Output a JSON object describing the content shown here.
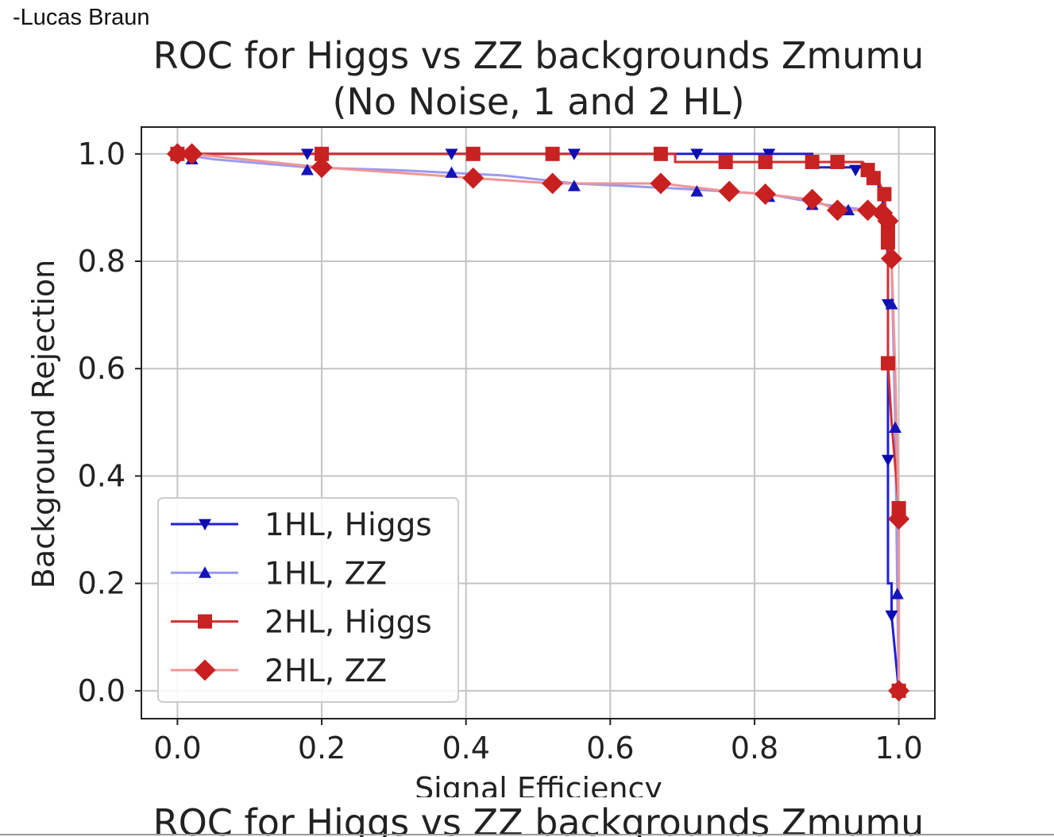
{
  "author": "-Lucas Braun",
  "chart_data": {
    "type": "line",
    "title": [
      "ROC for Higgs vs ZZ backgrounds Zmumu",
      "(No Noise, 1 and 2 HL)"
    ],
    "repeated_title_cropped": "ROC for Higgs vs ZZ backgrounds Zmumu",
    "xlabel": "Signal Efficiency",
    "ylabel": "Background Rejection",
    "xlim": [
      -0.05,
      1.05
    ],
    "ylim": [
      -0.052,
      1.05
    ],
    "xticks": [
      "0.0",
      "0.2",
      "0.4",
      "0.6",
      "0.8",
      "1.0"
    ],
    "yticks": [
      "0.0",
      "0.2",
      "0.4",
      "0.6",
      "0.8",
      "1.0"
    ],
    "grid": true,
    "legend_position": "bottom-left",
    "series": [
      {
        "name": "1HL, Higgs",
        "line_color": "#2020d8",
        "marker_color": "#0c0cb0",
        "marker": "triangle-down",
        "line": [
          [
            0,
            1
          ],
          [
            0.88,
            1
          ],
          [
            0.88,
            0.975
          ],
          [
            0.95,
            0.975
          ],
          [
            0.97,
            0.95
          ],
          [
            0.98,
            0.9
          ],
          [
            0.985,
            0.8
          ],
          [
            0.985,
            0.2
          ],
          [
            0.99,
            0.2
          ],
          [
            0.99,
            0.14
          ],
          [
            1.0,
            0.0
          ]
        ],
        "markers": [
          [
            0,
            1
          ],
          [
            0.02,
            1
          ],
          [
            0.18,
            1
          ],
          [
            0.38,
            1
          ],
          [
            0.55,
            1
          ],
          [
            0.72,
            1
          ],
          [
            0.82,
            1
          ],
          [
            0.94,
            0.97
          ],
          [
            0.985,
            0.72
          ],
          [
            0.985,
            0.43
          ],
          [
            0.99,
            0.14
          ]
        ]
      },
      {
        "name": "1HL, ZZ",
        "line_color": "#9a9af0",
        "marker_color": "#1414b8",
        "marker": "triangle-up",
        "line": [
          [
            0,
            1
          ],
          [
            0.05,
            0.99
          ],
          [
            0.18,
            0.975
          ],
          [
            0.3,
            0.97
          ],
          [
            0.45,
            0.96
          ],
          [
            0.55,
            0.945
          ],
          [
            0.7,
            0.935
          ],
          [
            0.82,
            0.925
          ],
          [
            0.9,
            0.905
          ],
          [
            0.96,
            0.895
          ],
          [
            0.98,
            0.88
          ],
          [
            0.99,
            0.8
          ],
          [
            0.995,
            0.5
          ],
          [
            0.998,
            0.18
          ],
          [
            1.0,
            0
          ]
        ],
        "markers": [
          [
            0.02,
            0.99
          ],
          [
            0.18,
            0.97
          ],
          [
            0.38,
            0.965
          ],
          [
            0.55,
            0.94
          ],
          [
            0.72,
            0.93
          ],
          [
            0.82,
            0.92
          ],
          [
            0.88,
            0.905
          ],
          [
            0.93,
            0.895
          ],
          [
            0.99,
            0.72
          ],
          [
            0.995,
            0.49
          ],
          [
            0.998,
            0.18
          ]
        ]
      },
      {
        "name": "2HL, Higgs",
        "line_color": "#d43030",
        "marker_color": "#c82222",
        "marker": "square",
        "line": [
          [
            0,
            1
          ],
          [
            0.69,
            1
          ],
          [
            0.69,
            0.985
          ],
          [
            0.95,
            0.985
          ],
          [
            0.96,
            0.97
          ],
          [
            0.97,
            0.955
          ],
          [
            0.98,
            0.925
          ],
          [
            0.985,
            0.85
          ],
          [
            0.985,
            0.61
          ],
          [
            0.99,
            0.5
          ],
          [
            1.0,
            0.34
          ],
          [
            1.0,
            0
          ]
        ],
        "markers": [
          [
            0,
            1
          ],
          [
            0.2,
            1
          ],
          [
            0.41,
            1
          ],
          [
            0.52,
            1
          ],
          [
            0.67,
            1
          ],
          [
            0.76,
            0.985
          ],
          [
            0.815,
            0.985
          ],
          [
            0.88,
            0.985
          ],
          [
            0.915,
            0.985
          ],
          [
            0.957,
            0.97
          ],
          [
            0.965,
            0.955
          ],
          [
            0.98,
            0.925
          ],
          [
            0.985,
            0.86
          ],
          [
            0.985,
            0.835
          ],
          [
            0.985,
            0.61
          ],
          [
            1.0,
            0.34
          ],
          [
            1.0,
            0
          ]
        ]
      },
      {
        "name": "2HL, ZZ",
        "line_color": "#f09595",
        "marker_color": "#c82020",
        "marker": "diamond",
        "line": [
          [
            0,
            1
          ],
          [
            0.02,
            1
          ],
          [
            0.2,
            0.975
          ],
          [
            0.41,
            0.955
          ],
          [
            0.52,
            0.945
          ],
          [
            0.67,
            0.945
          ],
          [
            0.765,
            0.93
          ],
          [
            0.815,
            0.925
          ],
          [
            0.88,
            0.915
          ],
          [
            0.915,
            0.895
          ],
          [
            0.957,
            0.895
          ],
          [
            0.977,
            0.89
          ],
          [
            0.985,
            0.875
          ],
          [
            0.99,
            0.805
          ],
          [
            0.995,
            0.6
          ],
          [
            1.0,
            0.32
          ],
          [
            1.0,
            0
          ]
        ],
        "markers": [
          [
            0,
            1
          ],
          [
            0.02,
            1
          ],
          [
            0.2,
            0.975
          ],
          [
            0.41,
            0.955
          ],
          [
            0.52,
            0.945
          ],
          [
            0.67,
            0.945
          ],
          [
            0.765,
            0.93
          ],
          [
            0.815,
            0.925
          ],
          [
            0.88,
            0.915
          ],
          [
            0.915,
            0.895
          ],
          [
            0.957,
            0.895
          ],
          [
            0.977,
            0.89
          ],
          [
            0.985,
            0.875
          ],
          [
            0.99,
            0.805
          ],
          [
            1.0,
            0.32
          ],
          [
            1.0,
            0
          ]
        ]
      }
    ]
  }
}
